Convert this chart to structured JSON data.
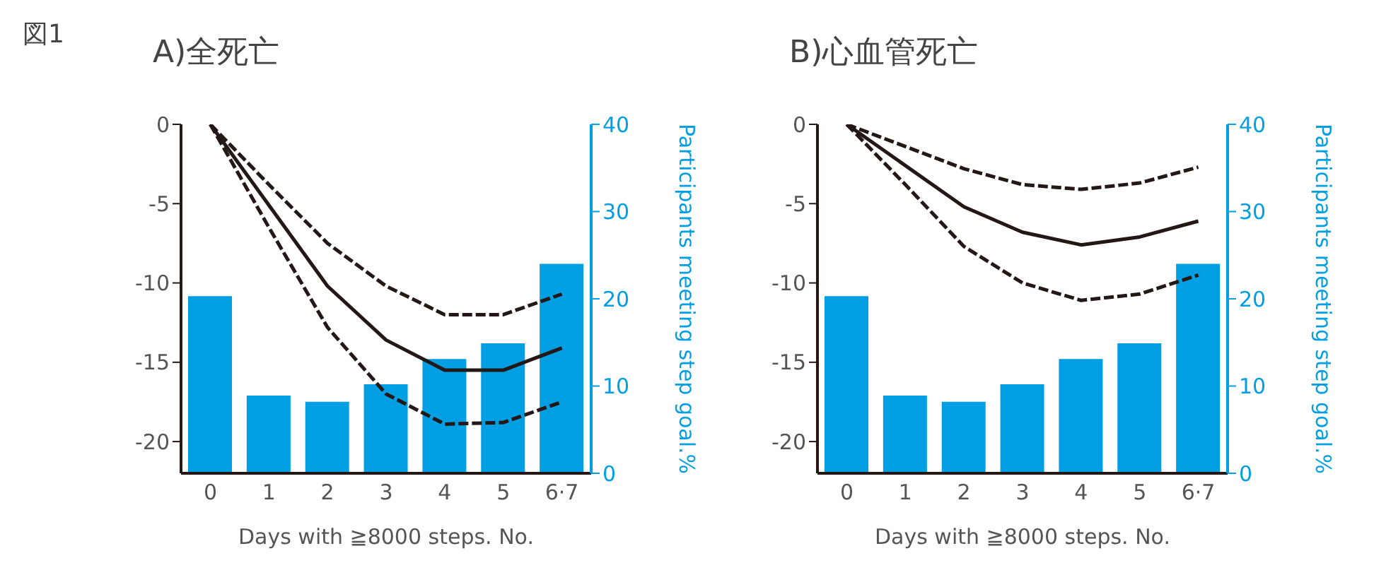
{
  "chart_data": [
    {
      "type": "bar",
      "title": "A)全死亡",
      "annotations": [
        "図1"
      ],
      "xlabel": "Days with ≧8000 steps. No.",
      "y2label": "Participants meeting step goal.%",
      "categories": [
        "0",
        "1",
        "2",
        "3",
        "4",
        "5",
        "6·7"
      ],
      "ylim": [
        -22,
        0
      ],
      "yticks": [
        0,
        -5,
        -10,
        -15,
        -20
      ],
      "y2lim": [
        0,
        40
      ],
      "y2ticks": [
        0,
        10,
        20,
        30,
        40
      ],
      "grid": false,
      "legend": false,
      "marker": "none",
      "series": [
        {
          "axis": "y2",
          "color": "#009fe3",
          "values": [
            20.3,
            8.9,
            8.2,
            10.2,
            13.1,
            14.9,
            24.0
          ]
        },
        {
          "type": "line",
          "axis": "y",
          "color": "#231815",
          "line_style": "dashed",
          "values": [
            0,
            -3.8,
            -7.5,
            -10.2,
            -12.0,
            -12.0,
            -10.7
          ]
        },
        {
          "type": "line",
          "axis": "y",
          "color": "#231815",
          "line_style": "solid",
          "values": [
            0,
            -5.1,
            -10.2,
            -13.6,
            -15.5,
            -15.5,
            -14.1
          ]
        },
        {
          "type": "line",
          "axis": "y",
          "color": "#231815",
          "line_style": "dashed",
          "values": [
            0,
            -6.5,
            -12.8,
            -17.0,
            -18.9,
            -18.8,
            -17.5
          ]
        }
      ]
    },
    {
      "type": "bar",
      "title": "B)心血管死亡",
      "xlabel": "Days with ≧8000 steps. No.",
      "y2label": "Participants meeting step goal.%",
      "categories": [
        "0",
        "1",
        "2",
        "3",
        "4",
        "5",
        "6·7"
      ],
      "ylim": [
        -22,
        0
      ],
      "yticks": [
        0,
        -5,
        -10,
        -15,
        -20
      ],
      "y2lim": [
        0,
        40
      ],
      "y2ticks": [
        0,
        10,
        20,
        30,
        40
      ],
      "grid": false,
      "legend": false,
      "marker": "none",
      "series": [
        {
          "axis": "y2",
          "color": "#009fe3",
          "values": [
            20.3,
            8.9,
            8.2,
            10.2,
            13.1,
            14.9,
            24.0
          ]
        },
        {
          "type": "line",
          "axis": "y",
          "color": "#231815",
          "line_style": "dashed",
          "values": [
            0,
            -1.4,
            -2.8,
            -3.8,
            -4.1,
            -3.7,
            -2.7
          ]
        },
        {
          "type": "line",
          "axis": "y",
          "color": "#231815",
          "line_style": "solid",
          "values": [
            0,
            -2.6,
            -5.2,
            -6.8,
            -7.6,
            -7.1,
            -6.1
          ]
        },
        {
          "type": "line",
          "axis": "y",
          "color": "#231815",
          "line_style": "dashed",
          "values": [
            0,
            -3.8,
            -7.7,
            -10.0,
            -11.1,
            -10.7,
            -9.5
          ]
        }
      ]
    }
  ]
}
